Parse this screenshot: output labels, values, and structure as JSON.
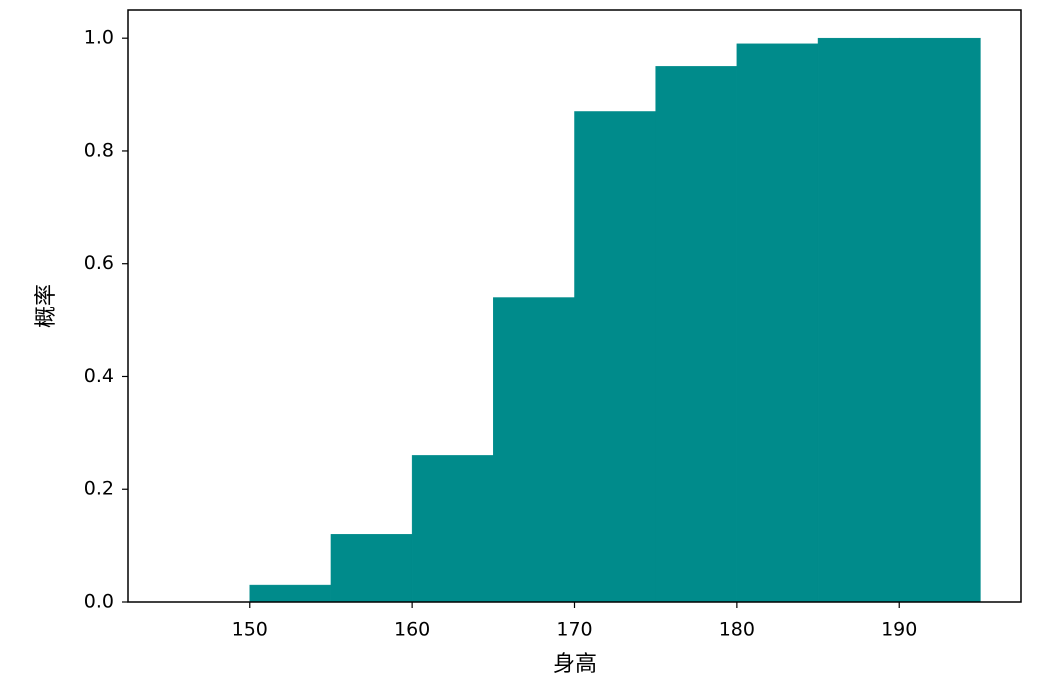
{
  "chart_data": {
    "type": "histogram",
    "xlabel": "身高",
    "ylabel": "概率",
    "bins": [
      150,
      155,
      160,
      165,
      170,
      175,
      180,
      185,
      190,
      195
    ],
    "values": [
      0.03,
      0.12,
      0.26,
      0.54,
      0.87,
      0.95,
      0.99,
      1.0,
      1.0
    ],
    "color": "#008b8b",
    "xlim": [
      142.5,
      197.5
    ],
    "xticks": [
      150,
      160,
      170,
      180,
      190
    ],
    "ylim": [
      0,
      1.05
    ],
    "yticks": [
      {
        "value": 0,
        "label": "0.0"
      },
      0.2,
      0.4,
      0.6,
      0.8,
      {
        "value": 1,
        "label": "1.0"
      }
    ]
  }
}
